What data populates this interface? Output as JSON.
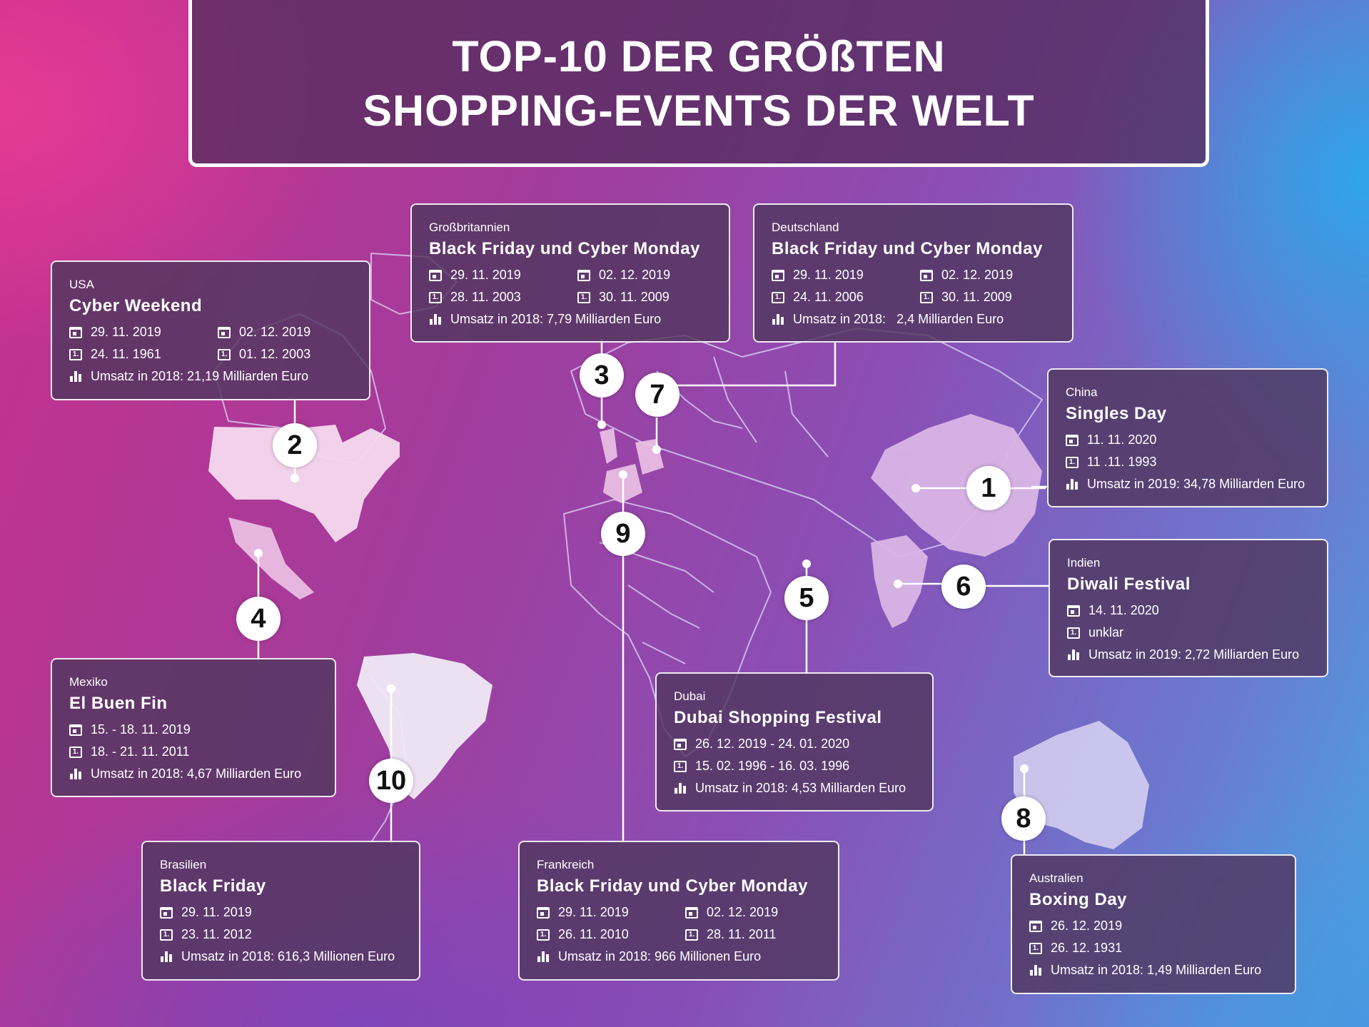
{
  "title": {
    "line1": "TOP-10 DER GRÖßTEN",
    "line2": "SHOPPING-EVENTS DER WELT"
  },
  "icons": {
    "date": "calendar-icon",
    "first": "first-time-icon",
    "revenue": "bar-chart-icon"
  },
  "colors": {
    "text": "#ffffff",
    "pin_bg": "#ffffff",
    "pin_text": "#111111",
    "land_highlight": "#f4d4ec"
  },
  "pins": [
    "1",
    "2",
    "3",
    "4",
    "5",
    "6",
    "7",
    "8",
    "9",
    "10"
  ],
  "cards": {
    "usa": {
      "rank": "2",
      "country": "USA",
      "event": "Cyber Weekend",
      "date_a": "29. 11. 2019",
      "date_b": "02. 12. 2019",
      "first_a": "24. 11. 1961",
      "first_b": "01. 12. 2003",
      "revenue": "Umsatz in 2018: 21,19 Milliarden Euro"
    },
    "uk": {
      "rank": "3",
      "country": "Großbritannien",
      "event": "Black Friday und Cyber Monday",
      "date_a": "29. 11. 2019",
      "date_b": "02. 12. 2019",
      "first_a": "28. 11. 2003",
      "first_b": "30. 11. 2009",
      "revenue": "Umsatz in 2018: 7,79 Milliarden Euro"
    },
    "de": {
      "rank": "7",
      "country": "Deutschland",
      "event": "Black Friday und Cyber Monday",
      "date_a": "29. 11. 2019",
      "date_b": "02. 12. 2019",
      "first_a": "24. 11. 2006",
      "first_b": "30. 11. 2009",
      "revenue": "Umsatz in 2018:   2,4 Milliarden Euro"
    },
    "cn": {
      "rank": "1",
      "country": "China",
      "event": "Singles Day",
      "date_a": "11. 11. 2020",
      "first_a": "11 .11. 1993",
      "revenue": "Umsatz in 2019: 34,78 Milliarden Euro"
    },
    "in": {
      "rank": "6",
      "country": "Indien",
      "event": "Diwali Festival",
      "date_a": "14. 11. 2020",
      "first_a": "unklar",
      "revenue": "Umsatz in 2019: 2,72 Milliarden Euro"
    },
    "mx": {
      "rank": "4",
      "country": "Mexiko",
      "event": "El Buen Fin",
      "date_a": "15. - 18. 11. 2019",
      "first_a": "18. - 21. 11. 2011",
      "revenue": "Umsatz in 2018: 4,67 Milliarden Euro"
    },
    "ae": {
      "rank": "5",
      "country": "Dubai",
      "event": "Dubai Shopping Festival",
      "date_a": "26. 12. 2019 - 24. 01. 2020",
      "first_a": "15. 02. 1996 - 16. 03. 1996",
      "revenue": "Umsatz in 2018: 4,53 Milliarden Euro"
    },
    "br": {
      "rank": "10",
      "country": "Brasilien",
      "event": "Black Friday",
      "date_a": "29. 11. 2019",
      "first_a": "23. 11. 2012",
      "revenue": "Umsatz in 2018: 616,3 Millionen Euro"
    },
    "fr": {
      "rank": "9",
      "country": "Frankreich",
      "event": "Black Friday und Cyber Monday",
      "date_a": "29. 11. 2019",
      "date_b": "02. 12. 2019",
      "first_a": "26. 11. 2010",
      "first_b": "28. 11. 2011",
      "revenue": "Umsatz in 2018: 966 Millionen Euro"
    },
    "au": {
      "rank": "8",
      "country": "Australien",
      "event": "Boxing Day",
      "date_a": "26. 12. 2019",
      "first_a": "26. 12. 1931",
      "revenue": "Umsatz in 2018: 1,49 Milliarden Euro"
    }
  }
}
